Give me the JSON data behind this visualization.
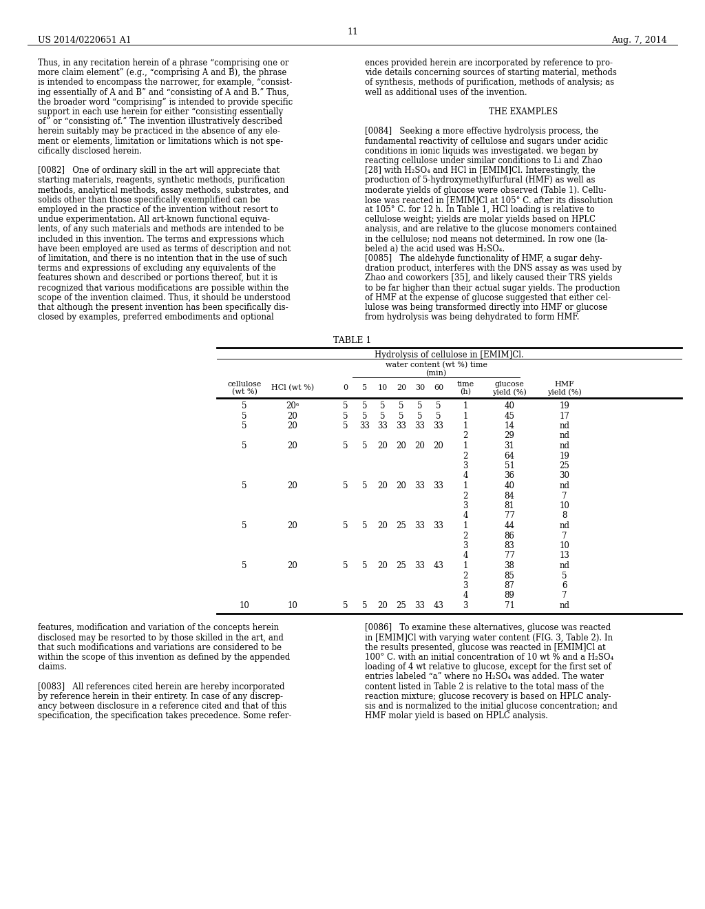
{
  "header_left": "US 2014/0220651 A1",
  "header_right": "Aug. 7, 2014",
  "page_number": "11",
  "background_color": "#ffffff",
  "text_color": "#000000",
  "font_size_body": 8.5,
  "font_size_header": 9.0,
  "left_column": [
    "Thus, in any recitation herein of a phrase “comprising one or",
    "more claim element” (e.g., “comprising A and B), the phrase",
    "is intended to encompass the narrower, for example, “consist-",
    "ing essentially of A and B” and “consisting of A and B.” Thus,",
    "the broader word “comprising” is intended to provide specific",
    "support in each use herein for either “consisting essentially",
    "of” or “consisting of.” The invention illustratively described",
    "herein suitably may be practiced in the absence of any ele-",
    "ment or elements, limitation or limitations which is not spe-",
    "cifically disclosed herein.",
    "",
    "[0082]   One of ordinary skill in the art will appreciate that",
    "starting materials, reagents, synthetic methods, purification",
    "methods, analytical methods, assay methods, substrates, and",
    "solids other than those specifically exemplified can be",
    "employed in the practice of the invention without resort to",
    "undue experimentation. All art-known functional equiva-",
    "lents, of any such materials and methods are intended to be",
    "included in this invention. The terms and expressions which",
    "have been employed are used as terms of description and not",
    "of limitation, and there is no intention that in the use of such",
    "terms and expressions of excluding any equivalents of the",
    "features shown and described or portions thereof, but it is",
    "recognized that various modifications are possible within the",
    "scope of the invention claimed. Thus, it should be understood",
    "that although the present invention has been specifically dis-",
    "closed by examples, preferred embodiments and optional"
  ],
  "right_column_top": [
    "ences provided herein are incorporated by reference to pro-",
    "vide details concerning sources of starting material, methods",
    "of synthesis, methods of purification, methods of analysis; as",
    "well as additional uses of the invention.",
    "",
    "THE EXAMPLES",
    "",
    "[0084]   Seeking a more effective hydrolysis process, the",
    "fundamental reactivity of cellulose and sugars under acidic",
    "conditions in ionic liquids was investigated. we began by",
    "reacting cellulose under similar conditions to Li and Zhao",
    "[28] with H₂SO₄ and HCl in [EMIM]Cl. Interestingly, the",
    "production of 5-hydroxymethylfurfural (HMF) as well as",
    "moderate yields of glucose were observed (Table 1). Cellu-",
    "lose was reacted in [EMIM]Cl at 105° C. after its dissolution",
    "at 105° C. for 12 h. In Table 1, HCl loading is relative to",
    "cellulose weight; yields are molar yields based on HPLC",
    "analysis, and are relative to the glucose monomers contained",
    "in the cellulose; nod means not determined. In row one (la-",
    "beled a) the acid used was H₂SO₄.",
    "[0085]   The aldehyde functionality of HMF, a sugar dehy-",
    "dration product, interferes with the DNS assay as was used by",
    "Zhao and coworkers [35], and likely caused their TRS yields",
    "to be far higher than their actual sugar yields. The production",
    "of HMF at the expense of glucose suggested that either cel-",
    "lulose was being transformed directly into HMF or glucose",
    "from hydrolysis was being dehydrated to form HMF."
  ],
  "bottom_left": [
    "features, modification and variation of the concepts herein",
    "disclosed may be resorted to by those skilled in the art, and",
    "that such modifications and variations are considered to be",
    "within the scope of this invention as defined by the appended",
    "claims.",
    "",
    "[0083]   All references cited herein are hereby incorporated",
    "by reference herein in their entirety. In case of any discrep-",
    "ancy between disclosure in a reference cited and that of this",
    "specification, the specification takes precedence. Some refer-"
  ],
  "bottom_right": [
    "[0086]   To examine these alternatives, glucose was reacted",
    "in [EMIM]Cl with varying water content (FIG. 3, Table 2). In",
    "the results presented, glucose was reacted in [EMIM]Cl at",
    "100° C. with an initial concentration of 10 wt % and a H₂SO₄",
    "loading of 4 wt relative to glucose, except for the first set of",
    "entries labeled “a” where no H₂SO₄ was added. The water",
    "content listed in Table 2 is relative to the total mass of the",
    "reaction mixture; glucose recovery is based on HPLC analy-",
    "sis and is normalized to the initial glucose concentration; and",
    "HMF molar yield is based on HPLC analysis."
  ],
  "table_title": "TABLE 1",
  "table_subtitle": "Hydrolysis of cellulose in [EMIM]Cl.",
  "table_col_header1": "water content (wt %) time\n(min)",
  "table_headers": [
    "cellulose\n(wt %)",
    "HCl (wt %)",
    "0",
    "5",
    "10",
    "20",
    "30",
    "60",
    "time\n(h)",
    "glucose\nyield (%)",
    "HMF\nyield (%)"
  ],
  "table_data": [
    [
      "5",
      "20ᵃ",
      "5",
      "5",
      "5",
      "5",
      "5",
      "5",
      "1",
      "40",
      "19"
    ],
    [
      "5",
      "20",
      "5",
      "5",
      "5",
      "5",
      "5",
      "5",
      "1",
      "45",
      "17"
    ],
    [
      "5",
      "20",
      "5",
      "33",
      "33",
      "33",
      "33",
      "33",
      "1",
      "14",
      "nd"
    ],
    [
      "",
      "",
      "",
      "",
      "",
      "",
      "",
      "",
      "2",
      "29",
      "nd"
    ],
    [
      "5",
      "20",
      "5",
      "5",
      "20",
      "20",
      "20",
      "20",
      "1",
      "31",
      "nd"
    ],
    [
      "",
      "",
      "",
      "",
      "",
      "",
      "",
      "",
      "2",
      "64",
      "19"
    ],
    [
      "",
      "",
      "",
      "",
      "",
      "",
      "",
      "",
      "3",
      "51",
      "25"
    ],
    [
      "",
      "",
      "",
      "",
      "",
      "",
      "",
      "",
      "4",
      "36",
      "30"
    ],
    [
      "5",
      "20",
      "5",
      "5",
      "20",
      "20",
      "33",
      "33",
      "1",
      "40",
      "nd"
    ],
    [
      "",
      "",
      "",
      "",
      "",
      "",
      "",
      "",
      "2",
      "84",
      "7"
    ],
    [
      "",
      "",
      "",
      "",
      "",
      "",
      "",
      "",
      "3",
      "81",
      "10"
    ],
    [
      "",
      "",
      "",
      "",
      "",
      "",
      "",
      "",
      "4",
      "77",
      "8"
    ],
    [
      "5",
      "20",
      "5",
      "5",
      "20",
      "25",
      "33",
      "33",
      "1",
      "44",
      "nd"
    ],
    [
      "",
      "",
      "",
      "",
      "",
      "",
      "",
      "",
      "2",
      "86",
      "7"
    ],
    [
      "",
      "",
      "",
      "",
      "",
      "",
      "",
      "",
      "3",
      "83",
      "10"
    ],
    [
      "",
      "",
      "",
      "",
      "",
      "",
      "",
      "",
      "4",
      "77",
      "13"
    ],
    [
      "5",
      "20",
      "5",
      "5",
      "20",
      "25",
      "33",
      "43",
      "1",
      "38",
      "nd"
    ],
    [
      "",
      "",
      "",
      "",
      "",
      "",
      "",
      "",
      "2",
      "85",
      "5"
    ],
    [
      "",
      "",
      "",
      "",
      "",
      "",
      "",
      "",
      "3",
      "87",
      "6"
    ],
    [
      "",
      "",
      "",
      "",
      "",
      "",
      "",
      "",
      "4",
      "89",
      "7"
    ],
    [
      "10",
      "10",
      "5",
      "5",
      "20",
      "25",
      "33",
      "43",
      "3",
      "71",
      "nd"
    ]
  ]
}
